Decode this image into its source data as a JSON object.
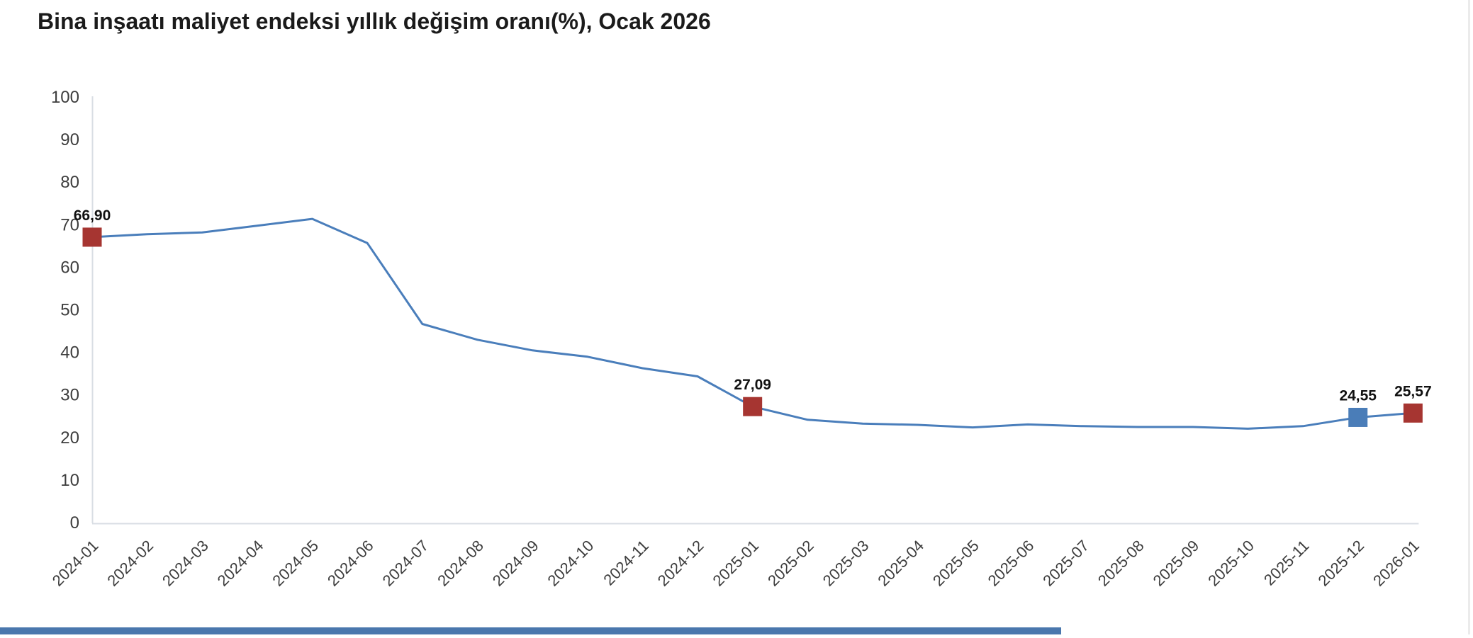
{
  "header": {
    "title": "Bina inşaatı maliyet endeksi yıllık değişim oranı(%), Ocak 2026"
  },
  "chart_data": {
    "type": "line",
    "title": "Bina inşaatı maliyet endeksi yıllık değişim oranı(%), Ocak 2026",
    "categories": [
      "2024-01",
      "2024-02",
      "2024-03",
      "2024-04",
      "2024-05",
      "2024-06",
      "2024-07",
      "2024-08",
      "2024-09",
      "2024-10",
      "2024-11",
      "2024-12",
      "2025-01",
      "2025-02",
      "2025-03",
      "2025-04",
      "2025-05",
      "2025-06",
      "2025-07",
      "2025-08",
      "2025-09",
      "2025-10",
      "2025-11",
      "2025-12",
      "2026-01"
    ],
    "values": [
      66.9,
      67.6,
      68.0,
      69.6,
      71.2,
      65.5,
      46.5,
      42.8,
      40.3,
      38.8,
      36.1,
      34.2,
      27.09,
      24.0,
      23.1,
      22.8,
      22.2,
      22.9,
      22.5,
      22.3,
      22.3,
      21.9,
      22.5,
      24.55,
      25.57
    ],
    "xlabel": "",
    "ylabel": "",
    "ylim": [
      0,
      100
    ],
    "ytick_step": 10,
    "grid": false,
    "legend_position": "none",
    "line_color": "#4a7ebb",
    "axis_color": "#d9dee4",
    "tick_label_color": "#3d3d3d",
    "data_label_color": "#111111",
    "annotated_points": [
      {
        "index": 0,
        "category": "2024-01",
        "value": 66.9,
        "display_label": "66,90",
        "marker_color": "#a63531"
      },
      {
        "index": 12,
        "category": "2025-01",
        "value": 27.09,
        "display_label": "27,09",
        "marker_color": "#a63531"
      },
      {
        "index": 23,
        "category": "2025-12",
        "value": 24.55,
        "display_label": "24,55",
        "marker_color": "#4a7db8"
      },
      {
        "index": 24,
        "category": "2026-01",
        "value": 25.57,
        "display_label": "25,57",
        "marker_color": "#a63531"
      }
    ]
  },
  "scrollbar": {
    "thumb_color": "#4a77ad"
  },
  "container": {
    "right_border_color": "#ebebeb"
  }
}
